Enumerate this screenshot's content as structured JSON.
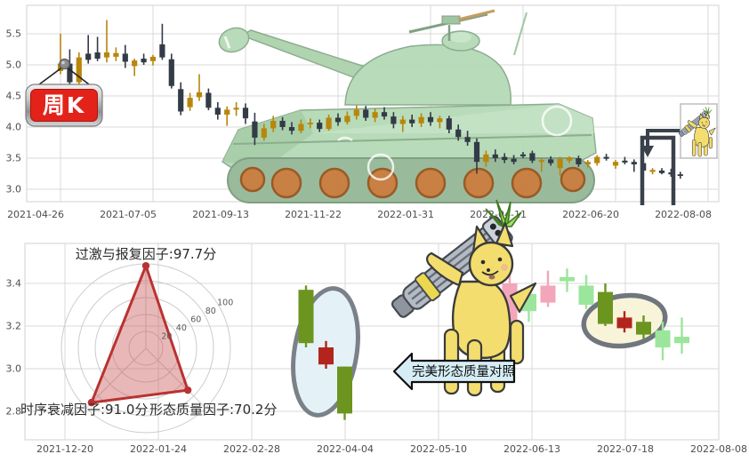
{
  "sign": {
    "label": "周K"
  },
  "annotations": {
    "compare_arrow_label": "完美形态质量对照"
  },
  "colors": {
    "weekly_up": "#b8860b",
    "weekly_down": "#333b46",
    "recent_up": "#f3a6ba",
    "recent_down": "#9ce59c",
    "highlight_up": "#b2251d",
    "highlight_down": "#6b951f",
    "radar_line": "#b93232",
    "radar_fill": "rgba(200,85,85,0.42)",
    "grid": "#d9d9d9",
    "tick_text": "#4d4d4d",
    "sign_red": "#e3231a",
    "annotation_line": "#3a414b"
  },
  "chart_data": [
    {
      "type": "candlestick",
      "name": "weekly_kline",
      "badge": "周K",
      "x_tick_labels": [
        "2021-04-26",
        "2021-07-05",
        "2021-09-13",
        "2021-11-22",
        "2022-01-31",
        "2022-04-11",
        "2022-06-20",
        "2022-08-08"
      ],
      "y_tick_labels": [
        "5.5",
        "5.0",
        "4.5",
        "4.0",
        "3.5",
        "3.0"
      ],
      "ylim": [
        2.73,
        5.96
      ],
      "grid": true,
      "candles_ohlc": [
        [
          4.9,
          5.5,
          4.85,
          5.02
        ],
        [
          5.02,
          5.25,
          4.55,
          4.72
        ],
        [
          4.72,
          5.2,
          4.65,
          5.12
        ],
        [
          5.18,
          5.48,
          5.02,
          5.08
        ],
        [
          5.2,
          5.45,
          5.06,
          5.1
        ],
        [
          5.12,
          5.72,
          5.04,
          5.2
        ],
        [
          5.13,
          5.28,
          5.06,
          5.19
        ],
        [
          5.18,
          5.32,
          4.95,
          5.05
        ],
        [
          4.98,
          5.1,
          4.82,
          5.07
        ],
        [
          5.1,
          5.18,
          5.0,
          5.04
        ],
        [
          5.06,
          5.16,
          4.99,
          5.13
        ],
        [
          5.33,
          5.66,
          5.08,
          5.12
        ],
        [
          5.09,
          5.18,
          4.62,
          4.66
        ],
        [
          4.61,
          4.72,
          4.19,
          4.25
        ],
        [
          4.32,
          4.55,
          4.26,
          4.47
        ],
        [
          4.48,
          4.85,
          4.42,
          4.56
        ],
        [
          4.55,
          4.62,
          4.27,
          4.31
        ],
        [
          4.31,
          4.4,
          4.12,
          4.2
        ],
        [
          4.2,
          4.33,
          4.02,
          4.28
        ],
        [
          4.28,
          4.4,
          4.18,
          4.31
        ],
        [
          4.31,
          4.38,
          4.05,
          4.14
        ],
        [
          4.09,
          4.23,
          3.71,
          3.83
        ],
        [
          3.83,
          4.05,
          3.78,
          3.98
        ],
        [
          3.98,
          4.18,
          3.92,
          4.1
        ],
        [
          4.1,
          4.16,
          3.95,
          4.0
        ],
        [
          4.0,
          4.08,
          3.88,
          3.94
        ],
        [
          3.94,
          4.12,
          3.9,
          4.05
        ],
        [
          4.05,
          4.14,
          3.98,
          4.07
        ],
        [
          4.07,
          4.12,
          3.92,
          3.97
        ],
        [
          3.97,
          4.2,
          3.94,
          4.15
        ],
        [
          4.15,
          4.22,
          4.02,
          4.08
        ],
        [
          4.08,
          4.25,
          4.04,
          4.18
        ],
        [
          4.18,
          4.35,
          4.12,
          4.28
        ],
        [
          4.28,
          4.34,
          4.1,
          4.15
        ],
        [
          4.15,
          4.3,
          4.08,
          4.24
        ],
        [
          4.24,
          4.32,
          4.12,
          4.17
        ],
        [
          4.17,
          4.24,
          3.98,
          4.05
        ],
        [
          4.05,
          4.18,
          3.92,
          4.12
        ],
        [
          4.12,
          4.2,
          4.0,
          4.06
        ],
        [
          4.06,
          4.22,
          4.0,
          4.16
        ],
        [
          4.16,
          4.24,
          4.02,
          4.08
        ],
        [
          4.08,
          4.18,
          3.98,
          4.14
        ],
        [
          4.14,
          4.18,
          3.9,
          3.96
        ],
        [
          3.96,
          4.04,
          3.78,
          3.84
        ],
        [
          3.84,
          3.94,
          3.7,
          3.76
        ],
        [
          3.76,
          3.82,
          3.25,
          3.44
        ],
        [
          3.44,
          3.62,
          3.36,
          3.56
        ],
        [
          3.56,
          3.64,
          3.44,
          3.5
        ],
        [
          3.52,
          3.58,
          3.42,
          3.47
        ],
        [
          3.49,
          3.55,
          3.4,
          3.44
        ],
        [
          3.56,
          3.6,
          3.5,
          3.53
        ],
        [
          3.58,
          3.62,
          3.42,
          3.46
        ],
        [
          3.44,
          3.5,
          3.28,
          3.47
        ],
        [
          3.48,
          3.53,
          3.38,
          3.42
        ],
        [
          3.34,
          3.52,
          3.22,
          3.49
        ],
        [
          3.46,
          3.53,
          3.42,
          3.51
        ],
        [
          3.5,
          3.54,
          3.36,
          3.4
        ],
        [
          3.4,
          3.47,
          3.35,
          3.44
        ],
        [
          3.42,
          3.55,
          3.38,
          3.52
        ],
        [
          3.52,
          3.57,
          3.46,
          3.49
        ],
        [
          3.38,
          3.47,
          3.33,
          3.44
        ],
        [
          3.46,
          3.52,
          3.4,
          3.43
        ],
        [
          3.44,
          3.48,
          3.28,
          3.4
        ],
        [
          3.42,
          3.46,
          3.27,
          3.3
        ],
        [
          3.28,
          3.34,
          3.24,
          3.31
        ],
        [
          3.3,
          3.34,
          3.24,
          3.26
        ],
        [
          3.27,
          3.33,
          3.2,
          3.24
        ],
        [
          3.24,
          3.28,
          3.17,
          3.22
        ]
      ]
    },
    {
      "type": "candlestick",
      "name": "recent_kline_zoom",
      "x_tick_labels": [
        "2021-12-20",
        "2022-01-24",
        "2022-02-28",
        "2022-04-04",
        "2022-05-10",
        "2022-06-13",
        "2022-07-18",
        "2022-08-08"
      ],
      "y_tick_labels": [
        "3.4",
        "3.2",
        "3.0",
        "2.8"
      ],
      "ylim": [
        2.7,
        3.58
      ],
      "grid": true,
      "candles_ohlc": [
        [
          3.19,
          3.45,
          3.17,
          3.4
        ],
        [
          3.35,
          3.38,
          3.22,
          3.27
        ],
        [
          3.31,
          3.46,
          3.29,
          3.39
        ],
        [
          3.43,
          3.47,
          3.36,
          3.41
        ],
        [
          3.39,
          3.44,
          3.28,
          3.3
        ],
        [
          3.36,
          3.4,
          3.2,
          3.21
        ],
        [
          3.19,
          3.27,
          3.17,
          3.24
        ],
        [
          3.22,
          3.25,
          3.14,
          3.16
        ],
        [
          3.18,
          3.22,
          3.04,
          3.1
        ],
        [
          3.15,
          3.24,
          3.07,
          3.12
        ]
      ],
      "highlight_indices": [
        5,
        6,
        7
      ],
      "pattern_example_ohlc": [
        [
          3.37,
          3.39,
          3.1,
          3.12
        ],
        [
          3.02,
          3.13,
          3.0,
          3.1
        ],
        [
          3.01,
          3.01,
          2.76,
          2.79
        ]
      ]
    },
    {
      "type": "radar",
      "name": "factor_scores",
      "max": 100,
      "ring_labels": [
        "20",
        "40",
        "60",
        "80",
        "100"
      ],
      "axes": {
        "top": {
          "label": "过激与报复因子:97.7分",
          "value": 97.7
        },
        "bottom_left": {
          "label": "时序衰减因子:91.0分",
          "value": 91.0
        },
        "bottom_right": {
          "label": "形态质量因子:70.2分",
          "value": 70.2
        }
      }
    }
  ]
}
